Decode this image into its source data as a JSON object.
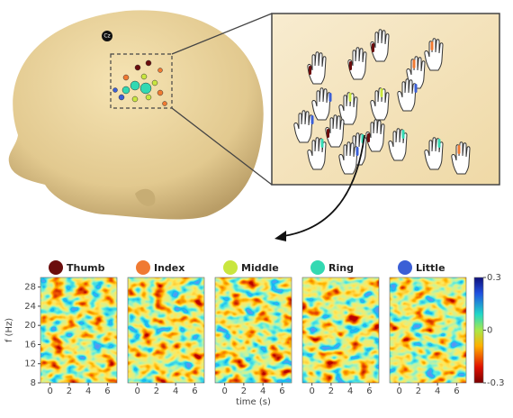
{
  "head": {
    "electrode_label": "Cz"
  },
  "fingers": [
    {
      "name": "Thumb",
      "color": "#6b0d0d"
    },
    {
      "name": "Index",
      "color": "#f07a32"
    },
    {
      "name": "Middle",
      "color": "#c9e63f"
    },
    {
      "name": "Ring",
      "color": "#33d9b2"
    },
    {
      "name": "Little",
      "color": "#3b5fd6"
    }
  ],
  "spectrograms": {
    "y_label": "f (Hz)",
    "x_label": "time (s)",
    "xlim": [
      -1,
      7
    ],
    "xticks": [
      0,
      2,
      4,
      6
    ],
    "ylim": [
      8,
      30
    ],
    "yticks": [
      8,
      12,
      16,
      20,
      24,
      28
    ]
  },
  "colorbar": {
    "lim": [
      -0.3,
      0.3
    ],
    "ticks": [
      0.3,
      0,
      -0.3
    ]
  }
}
